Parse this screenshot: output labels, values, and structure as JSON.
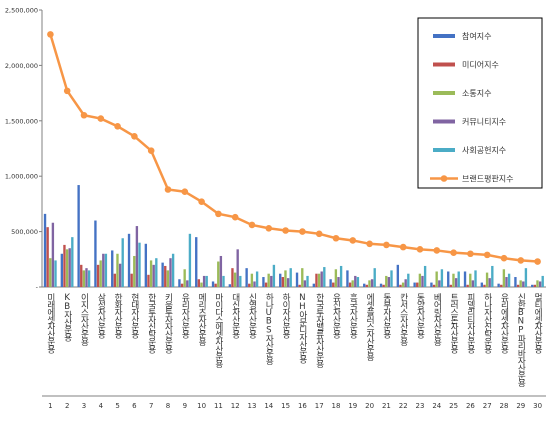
{
  "chart_data": {
    "type": "bar",
    "title": "",
    "xlabel": "",
    "ylabel": "",
    "ylim": [
      0,
      2500000
    ],
    "yticks": [
      0,
      500000,
      1000000,
      1500000,
      2000000,
      2500000
    ],
    "ytick_labels": [
      "-",
      "500,000",
      "1,000,000",
      "1,500,000",
      "2,000,000",
      "2,500,000"
    ],
    "grid": false,
    "legend_position": "top-right",
    "categories": [
      "미래에셋자산운용",
      "KB자산운용",
      "이지스자산운용",
      "삼성자산운용",
      "한화자산운용",
      "현대자산운용",
      "한국투자신탁운용",
      "키움투자자산운용",
      "유리자산운용",
      "메리츠자산운용",
      "마이다스에셋자산운용",
      "대신자산운용",
      "신영자산운용",
      "하나UBS자산운용",
      "하이자산운용",
      "NH아문디자산운용",
      "한국투자밸류자산운용",
      "유진자산운용",
      "흥국자산운용",
      "에셋플러스자산운용",
      "동부자산운용",
      "칸서스자산운용",
      "동양자산운용",
      "베어링자산운용",
      "트러스톤자산운용",
      "피델리티자산운용",
      "하나자산신탁운용",
      "유리에셋자산운용",
      "신한BNP파리바자산운용",
      "멀티에셋자산운용"
    ],
    "rank_labels": [
      "1",
      "2",
      "3",
      "4",
      "5",
      "6",
      "7",
      "8",
      "9",
      "10",
      "11",
      "12",
      "13",
      "14",
      "15",
      "16",
      "17",
      "18",
      "19",
      "20",
      "21",
      "22",
      "23",
      "24",
      "25",
      "26",
      "27",
      "28",
      "29",
      "30"
    ],
    "series": [
      {
        "name": "참여지수",
        "type": "bar",
        "color": "#4472c4",
        "values": [
          660000,
          300000,
          920000,
          600000,
          330000,
          480000,
          390000,
          220000,
          70000,
          450000,
          50000,
          25000,
          170000,
          90000,
          120000,
          130000,
          30000,
          70000,
          150000,
          30000,
          30000,
          200000,
          40000,
          40000,
          140000,
          140000,
          40000,
          30000,
          90000,
          20000
        ]
      },
      {
        "name": "미디어지수",
        "type": "bar",
        "color": "#c0504d",
        "values": [
          540000,
          380000,
          200000,
          200000,
          120000,
          120000,
          110000,
          190000,
          30000,
          70000,
          30000,
          170000,
          30000,
          40000,
          90000,
          20000,
          120000,
          40000,
          40000,
          20000,
          20000,
          20000,
          40000,
          20000,
          20000,
          20000,
          20000,
          20000,
          20000,
          20000
        ]
      },
      {
        "name": "소통지수",
        "type": "bar",
        "color": "#9bbb59",
        "values": [
          260000,
          340000,
          150000,
          240000,
          300000,
          280000,
          240000,
          150000,
          160000,
          40000,
          230000,
          130000,
          120000,
          120000,
          150000,
          170000,
          120000,
          160000,
          60000,
          60000,
          100000,
          40000,
          120000,
          140000,
          120000,
          120000,
          130000,
          160000,
          60000,
          60000
        ]
      },
      {
        "name": "커뮤니티지수",
        "type": "bar",
        "color": "#8064a2",
        "values": [
          580000,
          350000,
          170000,
          300000,
          210000,
          550000,
          200000,
          260000,
          60000,
          100000,
          280000,
          340000,
          50000,
          100000,
          80000,
          60000,
          140000,
          90000,
          100000,
          70000,
          90000,
          70000,
          100000,
          60000,
          80000,
          60000,
          80000,
          90000,
          50000,
          50000
        ]
      },
      {
        "name": "사회공헌지수",
        "type": "bar",
        "color": "#4bacc6",
        "values": [
          240000,
          450000,
          150000,
          300000,
          440000,
          400000,
          260000,
          300000,
          480000,
          100000,
          100000,
          100000,
          140000,
          200000,
          170000,
          100000,
          180000,
          190000,
          90000,
          170000,
          150000,
          120000,
          190000,
          160000,
          140000,
          150000,
          190000,
          120000,
          170000,
          100000
        ]
      },
      {
        "name": "브랜드평판지수",
        "type": "line",
        "color": "#f79646",
        "values": [
          2280000,
          1770000,
          1550000,
          1520000,
          1450000,
          1360000,
          1230000,
          880000,
          860000,
          770000,
          660000,
          630000,
          560000,
          530000,
          510000,
          500000,
          480000,
          440000,
          420000,
          390000,
          380000,
          360000,
          340000,
          330000,
          310000,
          300000,
          290000,
          260000,
          240000,
          230000
        ]
      }
    ]
  }
}
